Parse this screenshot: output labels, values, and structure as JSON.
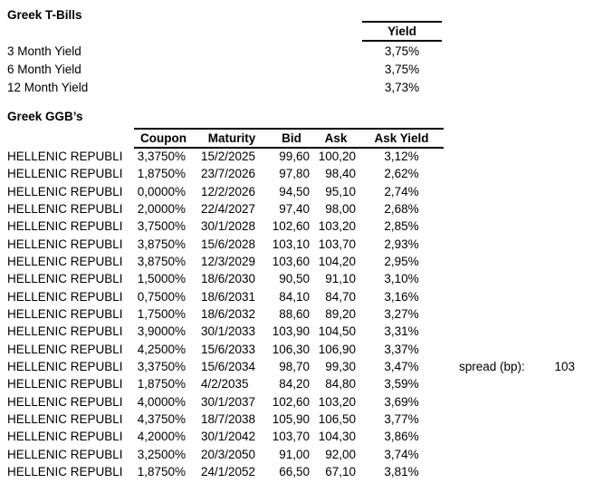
{
  "colors": {
    "background": "#ffffff",
    "text": "#000000",
    "border": "#000000"
  },
  "tbills": {
    "title": "Greek T-Bills",
    "yield_header": "Yield",
    "rows": [
      {
        "label": "3 Month Yield",
        "value": "3,75%"
      },
      {
        "label": "6 Month Yield",
        "value": "3,75%"
      },
      {
        "label": "12 Month Yield",
        "value": "3,73%"
      }
    ]
  },
  "ggb": {
    "title": "Greek GGB’s",
    "headers": {
      "coupon": "Coupon",
      "maturity": "Maturity",
      "bid": "Bid",
      "ask": "Ask",
      "ask_yield": "Ask Yield"
    },
    "rows": [
      {
        "name": "HELLENIC REPUBLI",
        "coupon": "3,3750%",
        "maturity": "15/2/2025",
        "bid": "99,60",
        "ask": "100,20",
        "ask_yield": "3,12%"
      },
      {
        "name": "HELLENIC REPUBLI",
        "coupon": "1,8750%",
        "maturity": "23/7/2026",
        "bid": "97,80",
        "ask": "98,40",
        "ask_yield": "2,62%"
      },
      {
        "name": "HELLENIC REPUBLI",
        "coupon": "0,0000%",
        "maturity": "12/2/2026",
        "bid": "94,50",
        "ask": "95,10",
        "ask_yield": "2,74%"
      },
      {
        "name": "HELLENIC REPUBLI",
        "coupon": "2,0000%",
        "maturity": "22/4/2027",
        "bid": "97,40",
        "ask": "98,00",
        "ask_yield": "2,68%"
      },
      {
        "name": "HELLENIC REPUBLI",
        "coupon": "3,7500%",
        "maturity": "30/1/2028",
        "bid": "102,60",
        "ask": "103,20",
        "ask_yield": "2,85%"
      },
      {
        "name": "HELLENIC REPUBLI",
        "coupon": "3,8750%",
        "maturity": "15/6/2028",
        "bid": "103,10",
        "ask": "103,70",
        "ask_yield": "2,93%"
      },
      {
        "name": "HELLENIC REPUBLI",
        "coupon": "3,8750%",
        "maturity": "12/3/2029",
        "bid": "103,60",
        "ask": "104,20",
        "ask_yield": "2,95%"
      },
      {
        "name": "HELLENIC REPUBLI",
        "coupon": "1,5000%",
        "maturity": "18/6/2030",
        "bid": "90,50",
        "ask": "91,10",
        "ask_yield": "3,10%"
      },
      {
        "name": "HELLENIC REPUBLI",
        "coupon": "0,7500%",
        "maturity": "18/6/2031",
        "bid": "84,10",
        "ask": "84,70",
        "ask_yield": "3,16%"
      },
      {
        "name": "HELLENIC REPUBLI",
        "coupon": "1,7500%",
        "maturity": "18/6/2032",
        "bid": "88,60",
        "ask": "89,20",
        "ask_yield": "3,27%"
      },
      {
        "name": "HELLENIC REPUBLI",
        "coupon": "3,9000%",
        "maturity": "30/1/2033",
        "bid": "103,90",
        "ask": "104,50",
        "ask_yield": "3,31%"
      },
      {
        "name": "HELLENIC REPUBLI",
        "coupon": "4,2500%",
        "maturity": "15/6/2033",
        "bid": "106,30",
        "ask": "106,90",
        "ask_yield": "3,37%"
      },
      {
        "name": "HELLENIC REPUBLI",
        "coupon": "3,3750%",
        "maturity": "15/6/2034",
        "bid": "98,70",
        "ask": "99,30",
        "ask_yield": "3,47%"
      },
      {
        "name": "HELLENIC REPUBLI",
        "coupon": "1,8750%",
        "maturity": "4/2/2035",
        "bid": "84,20",
        "ask": "84,80",
        "ask_yield": "3,59%"
      },
      {
        "name": "HELLENIC REPUBLI",
        "coupon": "4,0000%",
        "maturity": "30/1/2037",
        "bid": "102,60",
        "ask": "103,20",
        "ask_yield": "3,69%"
      },
      {
        "name": "HELLENIC REPUBLI",
        "coupon": "4,3750%",
        "maturity": "18/7/2038",
        "bid": "105,90",
        "ask": "106,50",
        "ask_yield": "3,77%"
      },
      {
        "name": "HELLENIC REPUBLI",
        "coupon": "4,2000%",
        "maturity": "30/1/2042",
        "bid": "103,70",
        "ask": "104,30",
        "ask_yield": "3,86%"
      },
      {
        "name": "HELLENIC REPUBLI",
        "coupon": "3,2500%",
        "maturity": "20/3/2050",
        "bid": "91,00",
        "ask": "92,00",
        "ask_yield": "3,74%"
      },
      {
        "name": "HELLENIC REPUBLI",
        "coupon": "1,8750%",
        "maturity": "24/1/2052",
        "bid": "66,50",
        "ask": "67,10",
        "ask_yield": "3,81%"
      }
    ]
  },
  "spread": {
    "label": "spread (bp):",
    "value": "103"
  }
}
